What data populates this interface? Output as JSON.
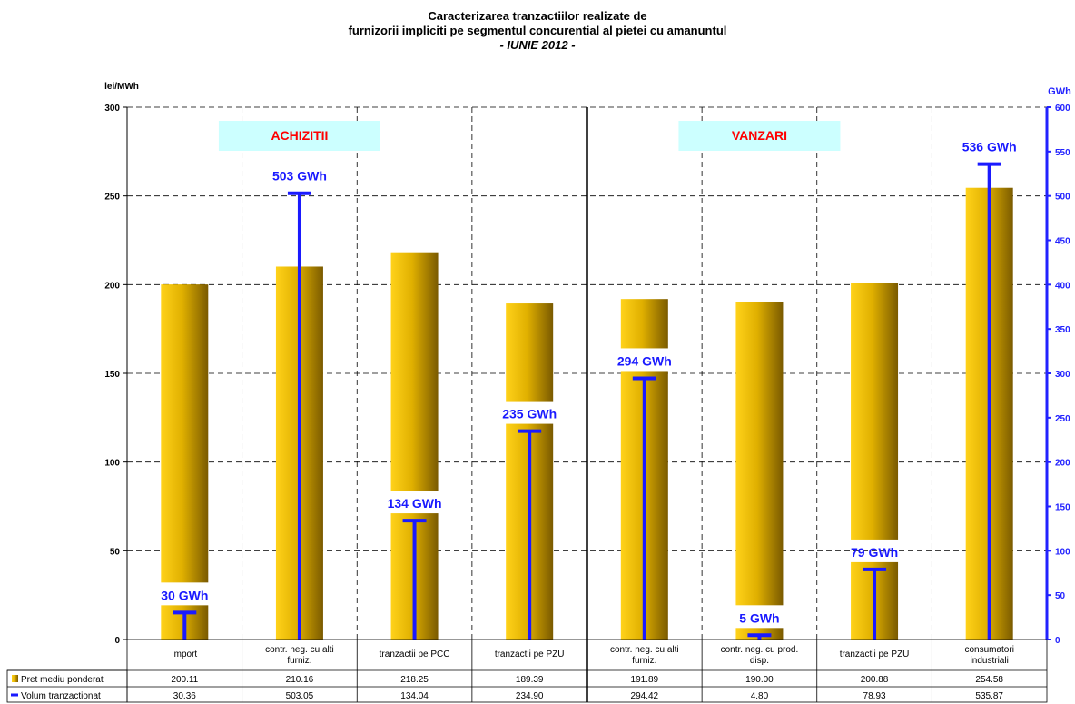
{
  "chart_data": {
    "type": "bar",
    "title_lines": [
      "Caracterizarea tranzactiilor realizate de",
      "furnizorii impliciti pe segmentul concurential al pietei cu amanuntul",
      "- IUNIE 2012 -"
    ],
    "ylabel_left": "lei/MWh",
    "ylabel_right": "GWh",
    "ylim_left": [
      0,
      300
    ],
    "ylim_right": [
      0,
      600
    ],
    "yticks_left": [
      0,
      50,
      100,
      150,
      200,
      250,
      300
    ],
    "yticks_right": [
      0,
      50,
      100,
      150,
      200,
      250,
      300,
      350,
      400,
      450,
      500,
      550,
      600
    ],
    "grid": true,
    "categories": [
      "import",
      "contr. neg. cu alti furniz.",
      "tranzactii pe PCC",
      "tranzactii pe PZU",
      "contr. neg. cu alti furniz.",
      "contr. neg. cu prod. disp.",
      "tranzactii pe PZU",
      "consumatori industriali"
    ],
    "groups": [
      {
        "label": "ACHIZITII",
        "categories": [
          0,
          1,
          2,
          3
        ]
      },
      {
        "label": "VANZARI",
        "categories": [
          4,
          5,
          6,
          7
        ]
      }
    ],
    "series": [
      {
        "name": "Pret mediu ponderat",
        "axis": "left",
        "kind": "bar",
        "values": [
          200.11,
          210.16,
          218.25,
          189.39,
          191.89,
          190.0,
          200.88,
          254.58
        ],
        "value_labels": [
          "200.11",
          "210.16",
          "218.25",
          "189.39",
          "191.89",
          "190.00",
          "200.88",
          "254.58"
        ]
      },
      {
        "name": "Volum tranzactionat",
        "axis": "right",
        "kind": "marker",
        "values": [
          30.36,
          503.05,
          134.04,
          234.9,
          294.42,
          4.8,
          78.93,
          535.87
        ],
        "value_labels": [
          "30.36",
          "503.05",
          "134.04",
          "234.90",
          "294.42",
          "4.80",
          "78.93",
          "535.87"
        ],
        "annotations": [
          "30 GWh",
          "503 GWh",
          "134 GWh",
          "235 GWh",
          "294 GWh",
          "5 GWh",
          "79 GWh",
          "536 GWh"
        ]
      }
    ],
    "colors": {
      "bar_light": "#ffd21a",
      "bar_dark": "#7a5a00",
      "volume": "#1a1aff",
      "group_label": "#ff0000",
      "group_box": "#ccffff",
      "right_axis": "#2222ff"
    }
  }
}
